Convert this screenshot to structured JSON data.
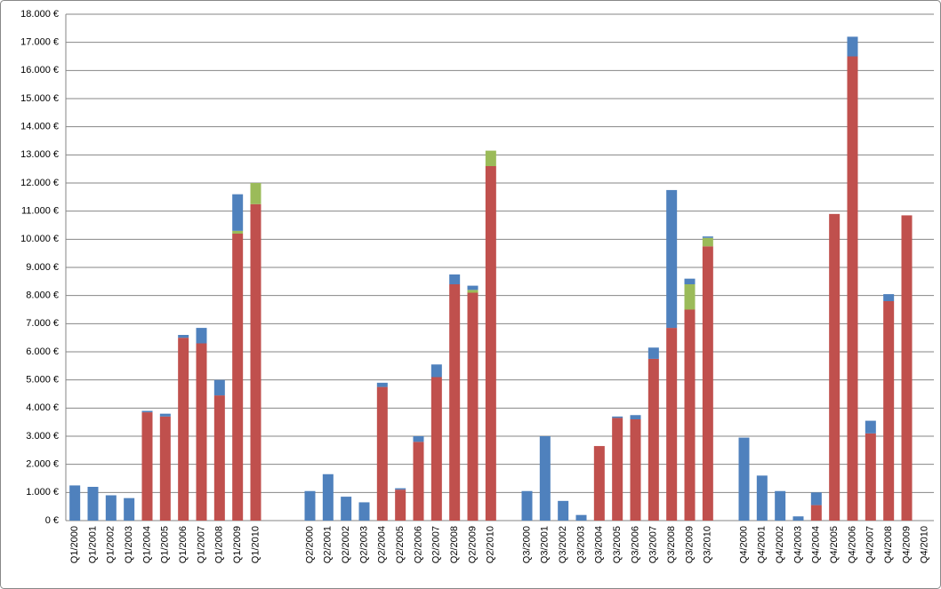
{
  "chart_data": {
    "type": "stacked_bar",
    "categories": [
      "Q1/2000",
      "Q1/2001",
      "Q1/2002",
      "Q1/2003",
      "Q1/2004",
      "Q1/2005",
      "Q1/2006",
      "Q1/2007",
      "Q1/2008",
      "Q1/2009",
      "Q1/2010",
      null,
      null,
      "Q2/2000",
      "Q2/2001",
      "Q2/2002",
      "Q2/2003",
      "Q2/2004",
      "Q2/2005",
      "Q2/2006",
      "Q2/2007",
      "Q2/2008",
      "Q2/2009",
      "Q2/2010",
      null,
      "Q3/2000",
      "Q3/2001",
      "Q3/2002",
      "Q3/2003",
      "Q3/2004",
      "Q3/2005",
      "Q3/2006",
      "Q3/2007",
      "Q3/2008",
      "Q3/2009",
      "Q3/2010",
      null,
      "Q4/2000",
      "Q4/2001",
      "Q4/2002",
      "Q4/2003",
      "Q4/2004",
      "Q4/2005",
      "Q4/2006",
      "Q4/2007",
      "Q4/2008",
      "Q4/2009",
      "Q4/2010"
    ],
    "series": [
      {
        "color": "#c0504d",
        "values": [
          0,
          0,
          0,
          0,
          3850,
          3700,
          6500,
          6300,
          4450,
          10200,
          11250,
          null,
          null,
          0,
          0,
          0,
          0,
          4750,
          1100,
          2800,
          5100,
          8400,
          8100,
          12600,
          null,
          0,
          0,
          0,
          0,
          2650,
          3650,
          3600,
          5750,
          6850,
          7500,
          9750,
          null,
          0,
          0,
          0,
          0,
          550,
          10900,
          16500,
          3100,
          7800,
          10850,
          0
        ]
      },
      {
        "color": "#9bbb59",
        "values": [
          0,
          0,
          0,
          0,
          0,
          0,
          0,
          0,
          0,
          100,
          750,
          null,
          null,
          0,
          0,
          0,
          0,
          0,
          0,
          0,
          0,
          0,
          100,
          550,
          null,
          0,
          0,
          0,
          0,
          0,
          0,
          0,
          0,
          0,
          900,
          300,
          null,
          0,
          0,
          0,
          0,
          0,
          0,
          0,
          0,
          0,
          0,
          0
        ]
      },
      {
        "color": "#4f81bd",
        "values": [
          1250,
          1200,
          900,
          800,
          50,
          100,
          100,
          550,
          550,
          1300,
          0,
          null,
          null,
          1050,
          1650,
          850,
          650,
          150,
          50,
          200,
          450,
          350,
          150,
          0,
          null,
          1050,
          3000,
          700,
          200,
          0,
          50,
          150,
          400,
          4900,
          200,
          50,
          null,
          2950,
          1600,
          1050,
          150,
          450,
          0,
          700,
          450,
          250,
          0,
          0
        ]
      }
    ],
    "ylim": [
      0,
      18000
    ],
    "yticks": [
      {
        "value": 0,
        "label": "0 €"
      },
      {
        "value": 1000,
        "label": "1.000 €"
      },
      {
        "value": 2000,
        "label": "2.000 €"
      },
      {
        "value": 3000,
        "label": "3.000 €"
      },
      {
        "value": 4000,
        "label": "4.000 €"
      },
      {
        "value": 5000,
        "label": "5.000 €"
      },
      {
        "value": 6000,
        "label": "6.000 €"
      },
      {
        "value": 7000,
        "label": "7.000 €"
      },
      {
        "value": 8000,
        "label": "8.000 €"
      },
      {
        "value": 9000,
        "label": "9.000 €"
      },
      {
        "value": 10000,
        "label": "10.000 €"
      },
      {
        "value": 11000,
        "label": "11.000 €"
      },
      {
        "value": 12000,
        "label": "12.000 €"
      },
      {
        "value": 13000,
        "label": "13.000 €"
      },
      {
        "value": 14000,
        "label": "14.000 €"
      },
      {
        "value": 15000,
        "label": "15.000 €"
      },
      {
        "value": 16000,
        "label": "16.000 €"
      },
      {
        "value": 17000,
        "label": "17.000 €"
      },
      {
        "value": 18000,
        "label": "18.000 €"
      }
    ],
    "grid": true
  }
}
